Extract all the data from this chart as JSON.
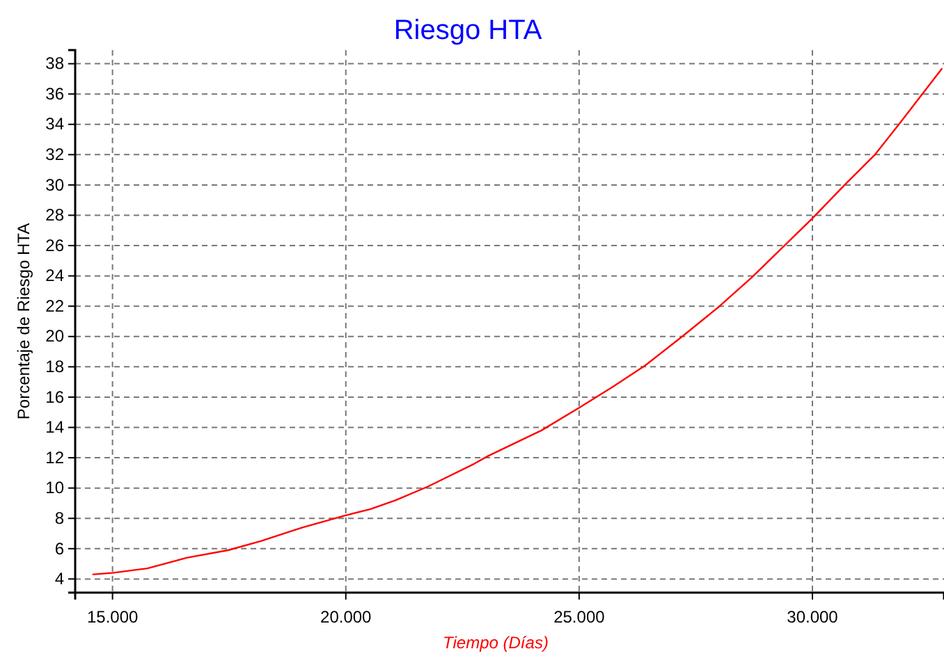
{
  "chart_data": {
    "type": "line",
    "title": "Riesgo HTA",
    "xlabel": "Tiempo (Días)",
    "ylabel": "Porcentaje de Riesgo HTA",
    "x": [
      14570,
      15000,
      15750,
      16590,
      17480,
      18180,
      19070,
      20000,
      20520,
      21070,
      21760,
      22750,
      23040,
      24190,
      25000,
      25730,
      26420,
      27210,
      28010,
      28700,
      29400,
      30000,
      30690,
      31340,
      31880,
      32380,
      32780
    ],
    "series": [
      {
        "color": "#ff0000",
        "values": [
          4.3,
          4.4,
          4.7,
          5.4,
          5.9,
          6.5,
          7.4,
          8.2,
          8.6,
          9.2,
          10.1,
          11.6,
          12.1,
          13.8,
          15.3,
          16.7,
          18.1,
          20.0,
          22.0,
          23.9,
          26.0,
          27.8,
          30.0,
          32.0,
          34.1,
          36.1,
          37.7
        ]
      }
    ],
    "xlim": [
      14200,
      32820
    ],
    "ylim": [
      3.1,
      38.9
    ],
    "xticks": [
      {
        "value": 15000,
        "label": "15.000"
      },
      {
        "value": 20000,
        "label": "20.000"
      },
      {
        "value": 25000,
        "label": "25.000"
      },
      {
        "value": 30000,
        "label": "30.000"
      }
    ],
    "yticks": [
      4,
      6,
      8,
      10,
      12,
      14,
      16,
      18,
      20,
      22,
      24,
      26,
      28,
      30,
      32,
      34,
      36,
      38
    ],
    "grid": true,
    "line_style": "solid",
    "marker": "none"
  }
}
